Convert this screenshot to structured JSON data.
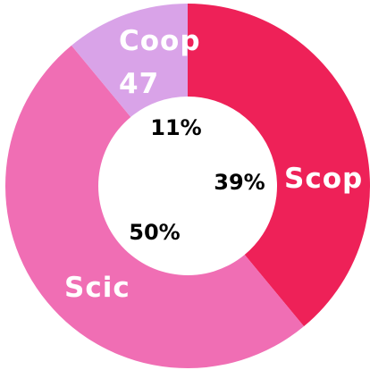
{
  "chart_data": {
    "type": "pie",
    "categories": [
      "Scop",
      "Scic",
      "Coop 47"
    ],
    "values": [
      39,
      50,
      11
    ],
    "value_labels": [
      "39%",
      "50%",
      "11%"
    ],
    "colors": [
      "#ee2158",
      "#f06eb4",
      "#d9a3e8"
    ],
    "donut": true
  }
}
